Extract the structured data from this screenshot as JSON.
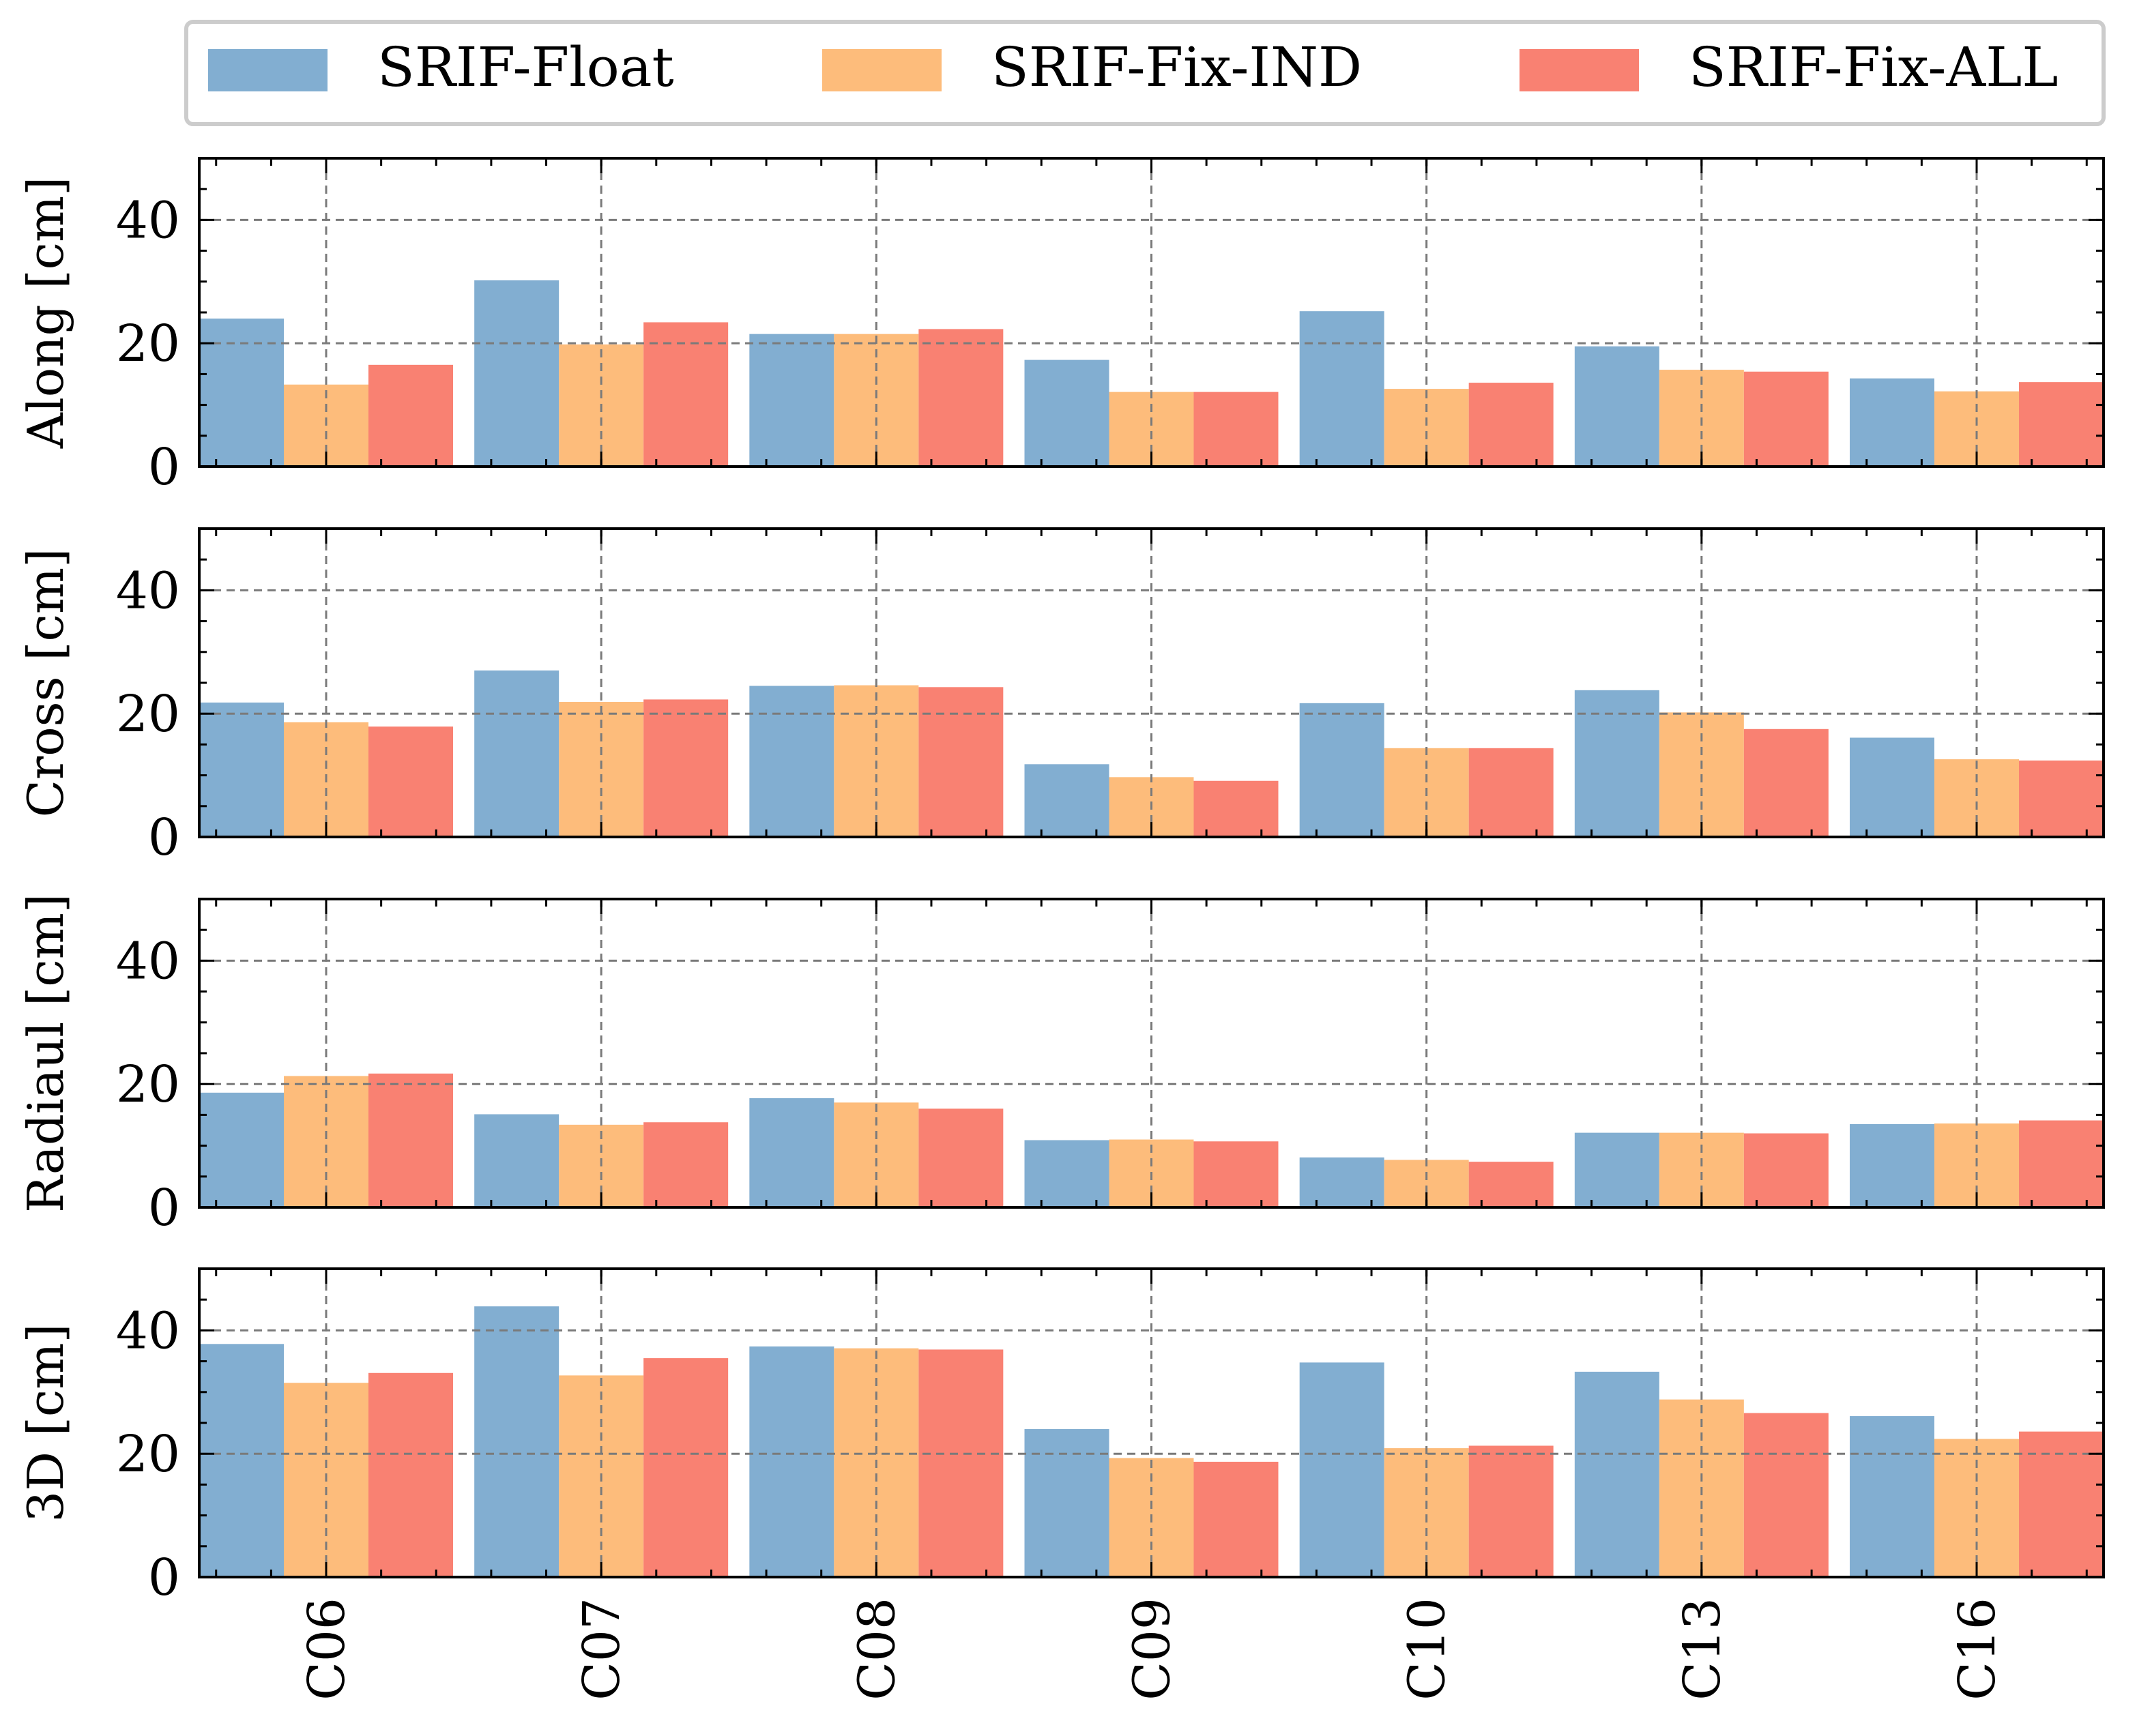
{
  "legend": {
    "placement": "top",
    "entries": [
      "SRIF-Float",
      "SRIF-Fix-IND",
      "SRIF-Fix-ALL"
    ]
  },
  "colors": [
    "#82aed1",
    "#fdbc7b",
    "#f98172"
  ],
  "chart_data": {
    "type": "bar",
    "categories": [
      "C06",
      "C07",
      "C08",
      "C09",
      "C10",
      "C13",
      "C16"
    ],
    "series_names": [
      "SRIF-Float",
      "SRIF-Fix-IND",
      "SRIF-Fix-ALL"
    ],
    "ylim": [
      0,
      50
    ],
    "yticks": [
      0,
      20,
      40
    ],
    "grid": true,
    "panels": [
      {
        "ylabel": "Along [cm]",
        "series": [
          {
            "name": "SRIF-Float",
            "values": [
              24.0,
              30.2,
              21.5,
              17.3,
              25.2,
              19.5,
              14.3
            ]
          },
          {
            "name": "SRIF-Fix-IND",
            "values": [
              13.3,
              19.8,
              21.5,
              12.1,
              12.6,
              15.7,
              12.2
            ]
          },
          {
            "name": "SRIF-Fix-ALL",
            "values": [
              16.5,
              23.4,
              22.3,
              12.1,
              13.6,
              15.4,
              13.7
            ]
          }
        ]
      },
      {
        "ylabel": "Cross [cm]",
        "series": [
          {
            "name": "SRIF-Float",
            "values": [
              21.8,
              27.0,
              24.5,
              11.8,
              21.7,
              23.8,
              16.1
            ]
          },
          {
            "name": "SRIF-Fix-IND",
            "values": [
              18.6,
              21.9,
              24.6,
              9.7,
              14.4,
              20.2,
              12.6
            ]
          },
          {
            "name": "SRIF-Fix-ALL",
            "values": [
              17.9,
              22.3,
              24.3,
              9.1,
              14.4,
              17.5,
              12.4
            ]
          }
        ]
      },
      {
        "ylabel": "Radiaul [cm]",
        "series": [
          {
            "name": "SRIF-Float",
            "values": [
              18.6,
              15.1,
              17.7,
              10.9,
              8.1,
              12.1,
              13.5
            ]
          },
          {
            "name": "SRIF-Fix-IND",
            "values": [
              21.3,
              13.4,
              17.0,
              11.0,
              7.7,
              12.1,
              13.6
            ]
          },
          {
            "name": "SRIF-Fix-ALL",
            "values": [
              21.7,
              13.8,
              16.0,
              10.7,
              7.4,
              12.0,
              14.1
            ]
          }
        ]
      },
      {
        "ylabel": "3D [cm]",
        "series": [
          {
            "name": "SRIF-Float",
            "values": [
              37.8,
              43.9,
              37.4,
              24.0,
              34.8,
              33.3,
              26.1
            ]
          },
          {
            "name": "SRIF-Fix-IND",
            "values": [
              31.5,
              32.7,
              37.1,
              19.3,
              20.9,
              28.8,
              22.4
            ]
          },
          {
            "name": "SRIF-Fix-ALL",
            "values": [
              33.1,
              35.5,
              36.9,
              18.7,
              21.3,
              26.6,
              23.6
            ]
          }
        ]
      }
    ]
  }
}
